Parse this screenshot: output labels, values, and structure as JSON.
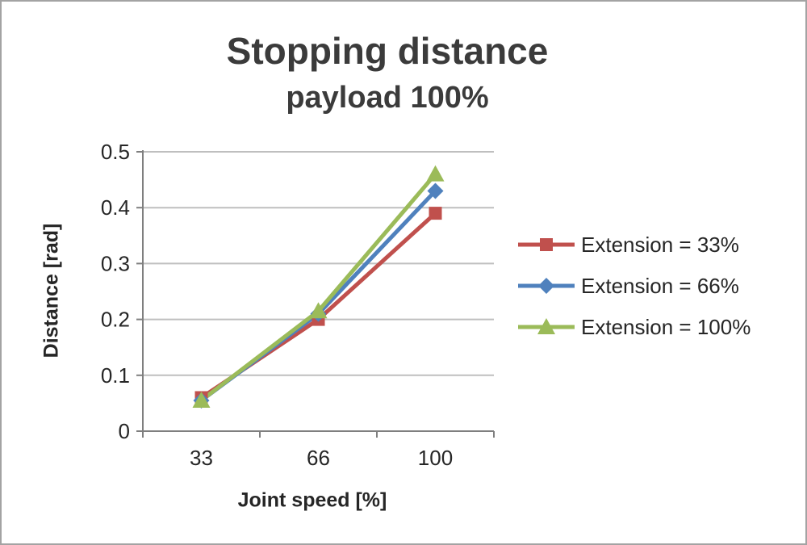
{
  "chart_data": {
    "type": "line",
    "title": "Stopping distance",
    "subtitle": "payload 100%",
    "xlabel": "Joint speed [%]",
    "ylabel": "Distance [rad]",
    "categories": [
      "33",
      "66",
      "100"
    ],
    "ylim": [
      0,
      0.5
    ],
    "ytick_interval": 0.1,
    "ytick_labels": [
      "0",
      "0.1",
      "0.2",
      "0.3",
      "0.4",
      "0.5"
    ],
    "grid": true,
    "legend_position": "right",
    "colors": {
      "gridline": "#bfbfbf",
      "axis": "#7f7f7f",
      "tick_text": "#262626"
    },
    "series": [
      {
        "name": "Extension = 33%",
        "color": "#c0504d",
        "marker": "square",
        "values": [
          0.06,
          0.2,
          0.39
        ]
      },
      {
        "name": "Extension = 66%",
        "color": "#4f81bd",
        "marker": "diamond",
        "values": [
          0.055,
          0.21,
          0.43
        ]
      },
      {
        "name": "Extension = 100%",
        "color": "#9bbb59",
        "marker": "triangle",
        "values": [
          0.055,
          0.215,
          0.46
        ]
      }
    ]
  }
}
